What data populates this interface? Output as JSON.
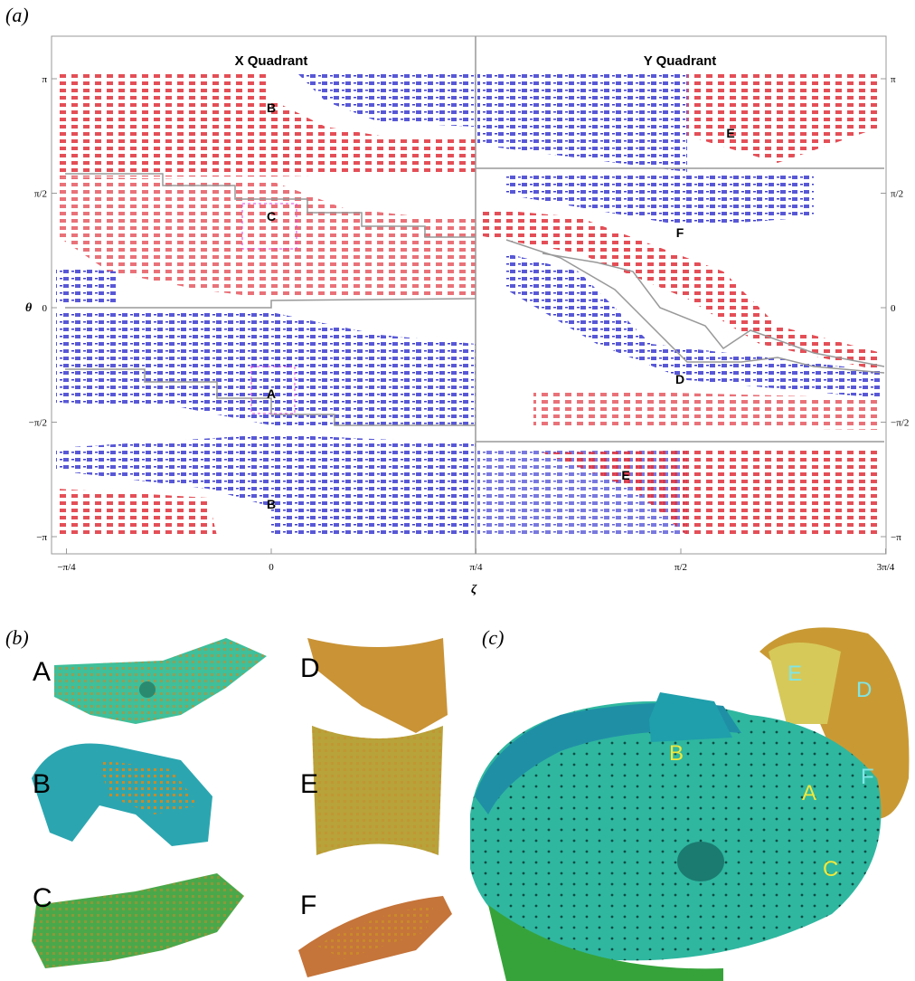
{
  "figure": {
    "panel_a": {
      "label": "(a)",
      "left_title": "X Quadrant",
      "right_title": "Y Quadrant",
      "regions": [
        "B",
        "C",
        "A",
        "B",
        "E",
        "F",
        "D",
        "E"
      ],
      "y_label": "θ",
      "x_label": "ζ",
      "yticks": [
        {
          "value": 3.1416,
          "label": "π"
        },
        {
          "value": 1.5708,
          "label": "π/2"
        },
        0,
        {
          "value": -1.5708,
          "label": "−π/2"
        },
        {
          "value": -3.1416,
          "label": "−π"
        }
      ],
      "xticks": [
        {
          "value": -0.7854,
          "label": "−π/4"
        },
        0,
        {
          "value": 0.7854,
          "label": "π/4"
        },
        {
          "value": 1.5708,
          "label": "π/2"
        },
        {
          "value": 2.3562,
          "label": "3π/4"
        }
      ]
    },
    "panel_b": {
      "label": "(b)",
      "parts": [
        "A",
        "D",
        "B",
        "E",
        "C",
        "F"
      ]
    },
    "panel_c": {
      "label": "(c)",
      "parts": [
        "B",
        "A",
        "E",
        "D",
        "F",
        "C"
      ]
    }
  }
}
